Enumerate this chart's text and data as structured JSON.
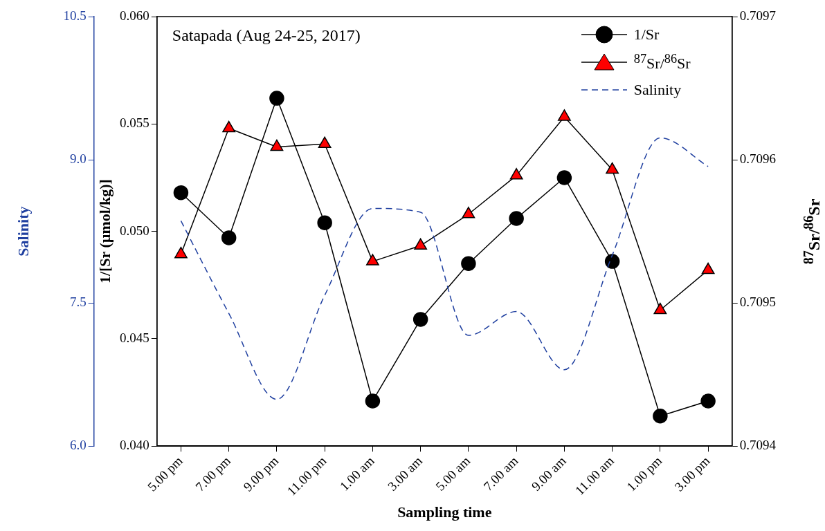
{
  "chart_data": {
    "type": "line",
    "title": "Satapada (Aug 24-25, 2017)",
    "xlabel": "Sampling time",
    "ylabel": "1/[Sr (µmol/kg)]",
    "y2label": "$^{87}$Sr/$^{86}$Sr",
    "y3label": "Salinity",
    "categories": [
      "5.00 pm",
      "7.00 pm",
      "9.00 pm",
      "11.00 pm",
      "1.00 am",
      "3.00 am",
      "5.00 am",
      "7.00 am",
      "9.00 am",
      "11.00 am",
      "1.00 pm",
      "3.00 pm"
    ],
    "series": [
      {
        "name": "1/Sr",
        "color": "#000000",
        "marker": "circle",
        "line_style": "solid",
        "values": [
          0.0518,
          0.0497,
          0.0562,
          0.0504,
          0.0421,
          0.0459,
          0.0485,
          0.0506,
          0.0525,
          0.0486,
          0.0414,
          0.0421
        ]
      },
      {
        "name": "$^{87}$Sr/$^{86}$Sr",
        "color": "#ff0000",
        "marker": "triangle",
        "line_style": "solid",
        "axis": "y2",
        "values": [
          0.709534,
          0.709622,
          0.709609,
          0.709611,
          0.709529,
          0.70954,
          0.709562,
          0.709589,
          0.70963,
          0.709593,
          0.709495,
          0.709523
        ]
      },
      {
        "name": "Salinity",
        "color": "#2040a0",
        "marker": "none",
        "line_style": "dashed",
        "axis": "y3",
        "values": [
          8.36,
          7.39,
          6.49,
          7.58,
          8.49,
          8.45,
          7.16,
          7.41,
          6.8,
          8.0,
          9.23,
          8.93
        ]
      }
    ],
    "ylim": [
      0.04,
      0.06
    ],
    "yticks": [
      {
        "value": 0.04,
        "label": "0.040"
      },
      0.045,
      {
        "value": 0.05,
        "label": "0.050"
      },
      0.055,
      {
        "value": 0.06,
        "label": "0.060"
      }
    ],
    "y2lim": [
      0.7094,
      0.7097
    ],
    "y2ticks": [
      0.7094,
      0.7095,
      0.7096,
      0.7097
    ],
    "y3lim": [
      6,
      10.5
    ],
    "y3ticks": [
      {
        "value": 6,
        "label": "6.0"
      },
      {
        "value": 7.5,
        "label": "7.5"
      },
      {
        "value": 9,
        "label": "9.0"
      },
      {
        "value": 10.5,
        "label": "10.5"
      }
    ],
    "grid": false,
    "legend": "top right"
  }
}
